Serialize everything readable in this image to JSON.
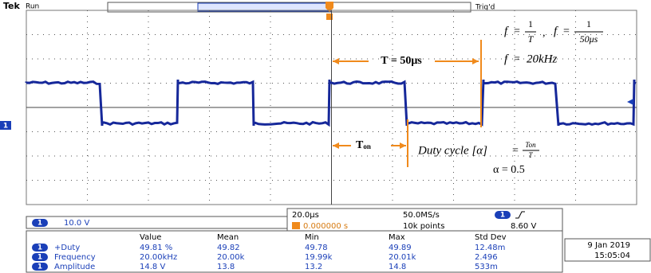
{
  "header": {
    "brand": "Tek",
    "state": "Run",
    "trigger_status": "Trig'd"
  },
  "annotations": {
    "frequency_formula": [
      {
        "variable": "f",
        "equals": "=",
        "numerator": "1",
        "denominator": "T"
      },
      {
        "variable": "f",
        "equals": "=",
        "numerator": "1",
        "denominator": "50μs"
      }
    ],
    "formula_separator": ",",
    "frequency_result": {
      "variable": "f",
      "equals": "=",
      "value": "20kHz"
    },
    "period_label": "T = 50μs",
    "on_time": {
      "symbol": "T",
      "subscript": "on"
    },
    "duty_cycle": {
      "label": "Duty cycle [α]",
      "equals": "=",
      "numerator": "Ton",
      "denominator": "T"
    },
    "alpha": "α = 0.5"
  },
  "channel": {
    "number": "1",
    "scale": "10.0 V"
  },
  "timebase": {
    "horizontal_scale": "20.0μs",
    "position": "0.000000 s",
    "sample_rate": "50.0MS/s",
    "record_length": "10k points",
    "trigger_channel": "1",
    "trigger_level": "8.60 V"
  },
  "measurements": {
    "columns": [
      "Value",
      "Mean",
      "Min",
      "Max",
      "Std Dev"
    ],
    "rows": [
      {
        "channel": "1",
        "name": "+Duty",
        "cells": [
          "49.81 %",
          "49.82",
          "49.78",
          "49.89",
          "12.48m"
        ]
      },
      {
        "channel": "1",
        "name": "Frequency",
        "cells": [
          "20.00kHz",
          "20.00k",
          "19.99k",
          "20.01k",
          "2.496"
        ]
      },
      {
        "channel": "1",
        "name": "Amplitude",
        "cells": [
          "14.8 V",
          "13.8",
          "13.2",
          "14.8",
          "533m"
        ]
      }
    ]
  },
  "timestamp": {
    "date": "9 Jan 2019",
    "time": "15:05:04"
  }
}
